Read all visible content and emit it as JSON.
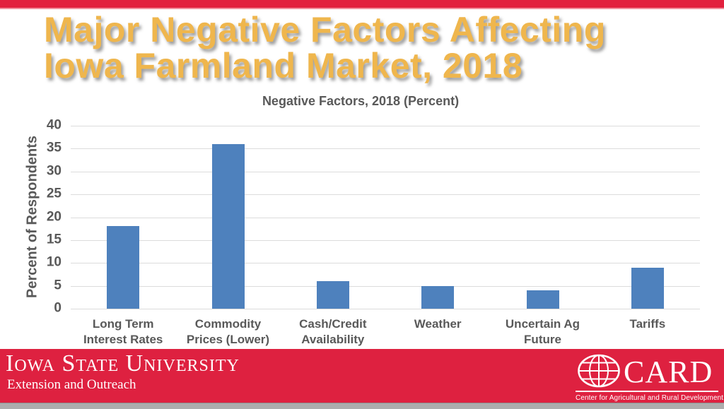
{
  "slide": {
    "title_line1": "Major Negative Factors Affecting",
    "title_line2": "Iowa Farmland Market, 2018"
  },
  "chart_data": {
    "type": "bar",
    "title": "Negative Factors, 2018 (Percent)",
    "xlabel": "",
    "ylabel": "Percent of Respondents",
    "categories": [
      "Long Term\nInterest Rates",
      "Commodity\nPrices (Lower)",
      "Cash/Credit\nAvailability",
      "Weather",
      "Uncertain Ag\nFuture",
      "Tariffs"
    ],
    "values": [
      18,
      36,
      6,
      5,
      4,
      9
    ],
    "ylim": [
      0,
      40
    ],
    "ytick_step": 5,
    "grid": true,
    "legend_position": "none"
  },
  "footer": {
    "university_wordmark": "Iowa State University",
    "university_tagline": "Extension and Outreach",
    "card_acronym": "CARD",
    "card_name": "Center for Agricultural and Rural Development"
  },
  "colors": {
    "top-bar-red": "#E2203E",
    "footer-red": "#DE2140",
    "title-gold": "#EFB64D",
    "bar-blue": "#4E81BD",
    "axis-text": "#595959",
    "gridline": "#DCDCDC"
  }
}
